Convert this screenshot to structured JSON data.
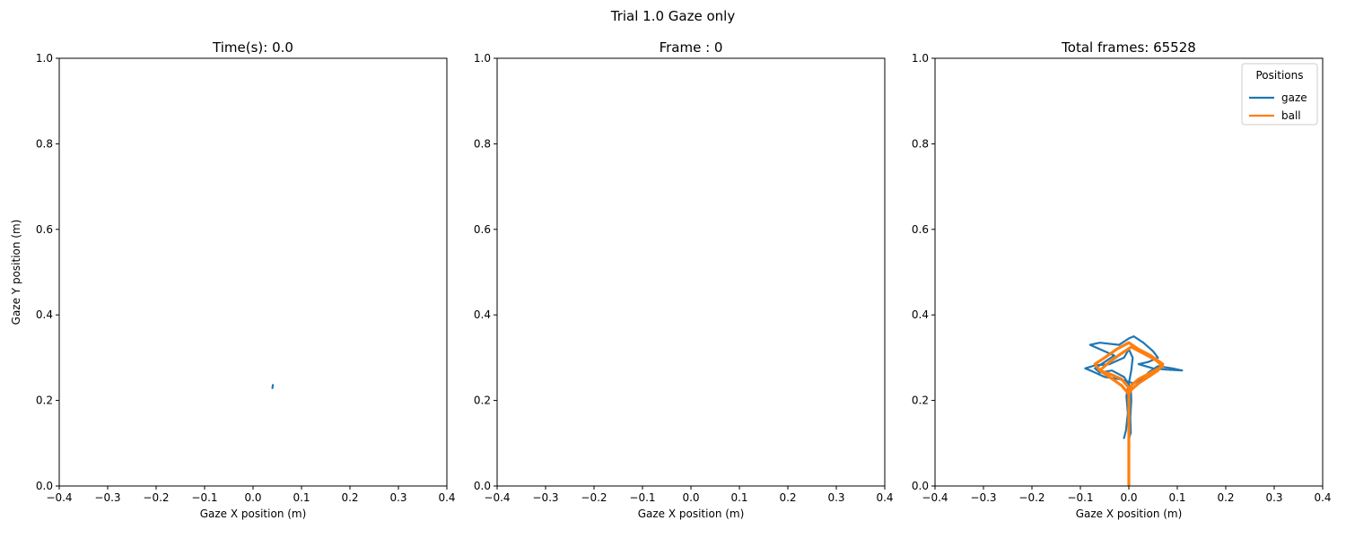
{
  "figure": {
    "suptitle": "Trial 1.0 Gaze only"
  },
  "colors": {
    "gaze": "#1f77b4",
    "ball": "#ff7f0e",
    "axis": "#000000"
  },
  "chart_data": [
    {
      "type": "line",
      "title": "Time(s): 0.0",
      "xlabel": "Gaze X position (m)",
      "ylabel": "Gaze Y position (m)",
      "xlim": [
        -0.4,
        0.4
      ],
      "ylim": [
        0.0,
        1.0
      ],
      "xticks": [
        "−0.4",
        "−0.3",
        "−0.2",
        "−0.1",
        "0.0",
        "0.1",
        "0.2",
        "0.3",
        "0.4"
      ],
      "yticks": [
        "0.0",
        "0.2",
        "0.4",
        "0.6",
        "0.8",
        "1.0"
      ],
      "legend": null,
      "grid": false,
      "series": [
        {
          "key": "gaze",
          "points": [
            [
              0.04,
              0.229
            ],
            [
              0.041,
              0.236
            ]
          ]
        }
      ]
    },
    {
      "type": "line",
      "title": "Frame : 0",
      "xlabel": "Gaze X position (m)",
      "ylabel": "",
      "xlim": [
        -0.4,
        0.4
      ],
      "ylim": [
        0.0,
        1.0
      ],
      "xticks": [
        "−0.4",
        "−0.3",
        "−0.2",
        "−0.1",
        "0.0",
        "0.1",
        "0.2",
        "0.3",
        "0.4"
      ],
      "yticks": [
        "0.0",
        "0.2",
        "0.4",
        "0.6",
        "0.8",
        "1.0"
      ],
      "legend": null,
      "grid": false,
      "series": []
    },
    {
      "type": "line",
      "title": "Total frames: 65528",
      "xlabel": "Gaze X position (m)",
      "ylabel": "",
      "xlim": [
        -0.4,
        0.4
      ],
      "ylim": [
        0.0,
        1.0
      ],
      "xticks": [
        "−0.4",
        "−0.3",
        "−0.2",
        "−0.1",
        "0.0",
        "0.1",
        "0.2",
        "0.3",
        "0.4"
      ],
      "yticks": [
        "0.0",
        "0.2",
        "0.4",
        "0.6",
        "0.8",
        "1.0"
      ],
      "grid": false,
      "legend": {
        "title": "Positions",
        "placement": "upper-right",
        "entries": [
          {
            "key": "gaze",
            "label": "gaze"
          },
          {
            "key": "ball",
            "label": "ball"
          }
        ]
      },
      "series": [
        {
          "key": "gaze",
          "name": "gaze",
          "points": [
            [
              0.0,
              0.11
            ],
            [
              0.004,
              0.125
            ],
            [
              0.003,
              0.16
            ],
            [
              0.005,
              0.2
            ],
            [
              0.004,
              0.23
            ],
            [
              -0.01,
              0.255
            ],
            [
              -0.035,
              0.27
            ],
            [
              -0.06,
              0.265
            ],
            [
              -0.07,
              0.275
            ],
            [
              -0.05,
              0.29
            ],
            [
              -0.03,
              0.305
            ],
            [
              -0.06,
              0.32
            ],
            [
              -0.08,
              0.33
            ],
            [
              -0.06,
              0.335
            ],
            [
              -0.02,
              0.33
            ],
            [
              0.0,
              0.345
            ],
            [
              0.01,
              0.35
            ],
            [
              0.03,
              0.335
            ],
            [
              0.05,
              0.315
            ],
            [
              0.06,
              0.3
            ],
            [
              0.04,
              0.29
            ],
            [
              0.02,
              0.285
            ],
            [
              0.05,
              0.275
            ],
            [
              0.08,
              0.272
            ],
            [
              0.11,
              0.27
            ],
            [
              0.09,
              0.275
            ],
            [
              0.06,
              0.28
            ],
            [
              0.04,
              0.265
            ],
            [
              0.03,
              0.25
            ],
            [
              0.01,
              0.24
            ],
            [
              -0.02,
              0.25
            ],
            [
              -0.05,
              0.255
            ],
            [
              -0.075,
              0.268
            ],
            [
              -0.09,
              0.275
            ],
            [
              -0.07,
              0.282
            ],
            [
              -0.04,
              0.285
            ],
            [
              -0.01,
              0.3
            ],
            [
              0.0,
              0.32
            ],
            [
              0.008,
              0.3
            ],
            [
              0.005,
              0.27
            ],
            [
              0.0,
              0.24
            ],
            [
              -0.005,
              0.21
            ],
            [
              -0.002,
              0.17
            ],
            [
              -0.006,
              0.13
            ],
            [
              -0.01,
              0.112
            ]
          ]
        },
        {
          "key": "ball",
          "name": "ball",
          "points": [
            [
              0.0,
              0.0
            ],
            [
              0.0,
              0.1
            ],
            [
              0.0,
              0.19
            ],
            [
              0.0,
              0.23
            ],
            [
              -0.015,
              0.25
            ],
            [
              -0.035,
              0.26
            ],
            [
              -0.06,
              0.27
            ],
            [
              -0.07,
              0.285
            ],
            [
              -0.05,
              0.3
            ],
            [
              -0.025,
              0.32
            ],
            [
              0.0,
              0.335
            ],
            [
              0.02,
              0.32
            ],
            [
              0.045,
              0.305
            ],
            [
              0.07,
              0.285
            ],
            [
              0.06,
              0.27
            ],
            [
              0.04,
              0.255
            ],
            [
              0.02,
              0.24
            ],
            [
              0.005,
              0.225
            ],
            [
              0.0,
              0.215
            ],
            [
              -0.015,
              0.235
            ],
            [
              -0.04,
              0.255
            ],
            [
              -0.06,
              0.27
            ],
            [
              -0.04,
              0.29
            ],
            [
              -0.015,
              0.31
            ],
            [
              0.005,
              0.325
            ],
            [
              0.03,
              0.31
            ],
            [
              0.055,
              0.295
            ],
            [
              0.07,
              0.28
            ],
            [
              0.045,
              0.265
            ],
            [
              0.02,
              0.25
            ],
            [
              0.005,
              0.235
            ],
            [
              0.0,
              0.22
            ]
          ]
        }
      ]
    }
  ]
}
